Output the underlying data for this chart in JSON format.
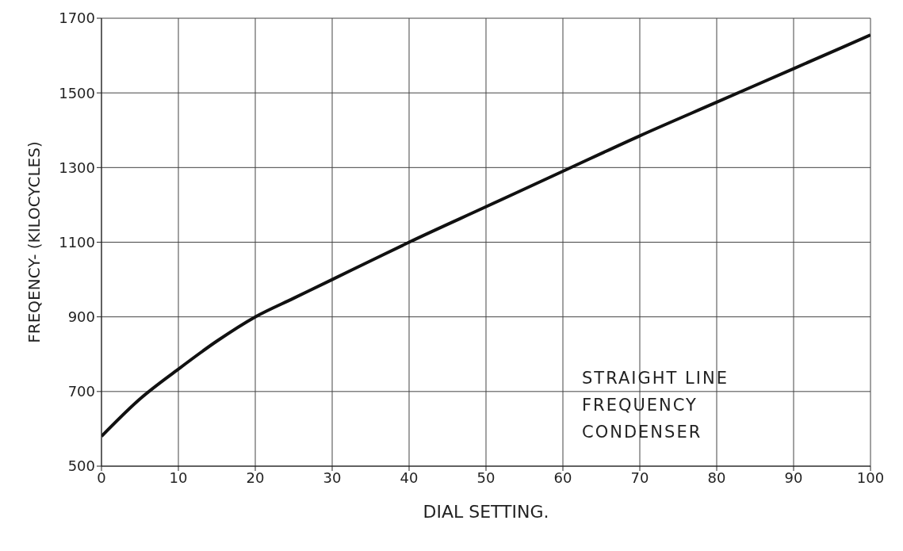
{
  "chart_data": {
    "type": "line",
    "xlabel": "DIAL SETTING.",
    "ylabel": "FREQENCY- (KILOCYCLES)",
    "x": [
      0,
      5,
      10,
      15,
      20,
      25,
      30,
      35,
      40,
      50,
      60,
      70,
      80,
      90,
      100
    ],
    "series": [
      {
        "color": "#111111",
        "values": [
          580,
          680,
          760,
          835,
          900,
          950,
          1000,
          1050,
          1100,
          1195,
          1290,
          1385,
          1475,
          1565,
          1655
        ]
      }
    ],
    "xlim": [
      0,
      100
    ],
    "xticks": [
      0,
      10,
      20,
      30,
      40,
      50,
      60,
      70,
      80,
      90,
      100
    ],
    "ylim": [
      500,
      1700
    ],
    "yticks": [
      500,
      700,
      900,
      1100,
      1300,
      1500,
      1700
    ],
    "grid": true,
    "legend": false,
    "marker": "none",
    "line_style": "solid",
    "annotations": [
      "STRAIGHT LINE FREQUENCY CONDENSER"
    ]
  }
}
